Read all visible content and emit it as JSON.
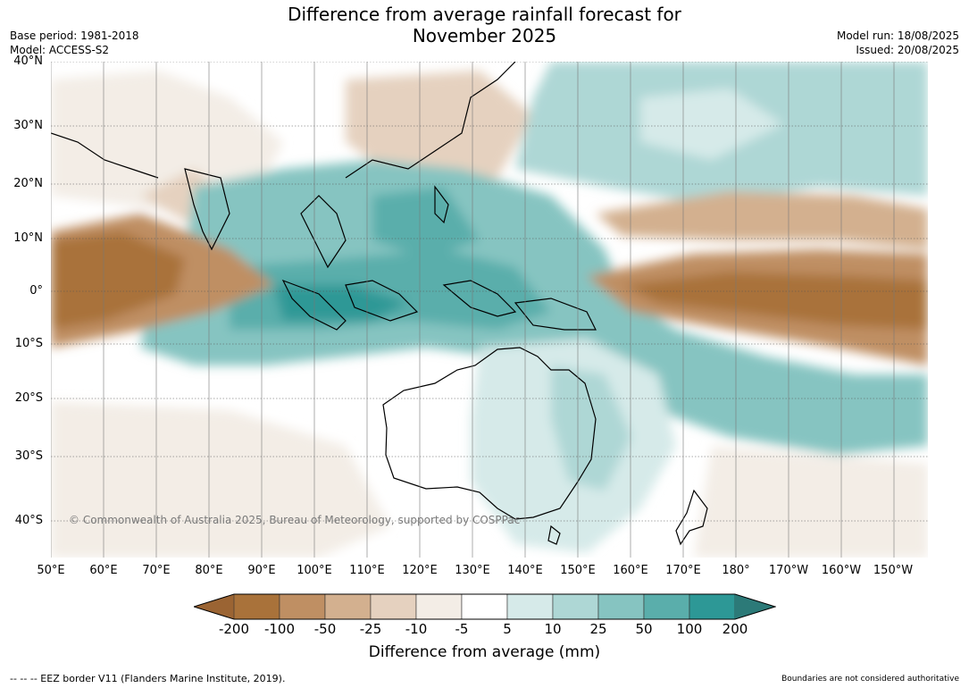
{
  "title_line1": "Difference from average rainfall forecast for",
  "title_line2": "November 2025",
  "base_period": "Base period: 1981-2018",
  "model": "Model: ACCESS-S2",
  "model_run": "Model run: 18/08/2025",
  "issued": "Issued: 20/08/2025",
  "copyright": "© Commonwealth of Australia 2025, Bureau of Meteorology, supported by COSPPac",
  "lat_labels": [
    "40°N",
    "30°N",
    "20°N",
    "10°N",
    "0°",
    "10°S",
    "20°S",
    "30°S",
    "40°S"
  ],
  "lon_labels": [
    "50°E",
    "60°E",
    "70°E",
    "80°E",
    "90°E",
    "100°E",
    "110°E",
    "120°E",
    "130°E",
    "140°E",
    "150°E",
    "160°E",
    "170°E",
    "180°",
    "170°W",
    "160°W",
    "150°W"
  ],
  "colorbar": {
    "ticks": [
      "-200",
      "-100",
      "-50",
      "-25",
      "-10",
      "-5",
      "5",
      "10",
      "25",
      "50",
      "100",
      "200"
    ],
    "label": "Difference from average (mm)",
    "colors": {
      "below_min": "#9b6433",
      "bins": [
        "#a9723a",
        "#bf8f63",
        "#d3b08f",
        "#e5d1bf",
        "#f3ede6",
        "#ffffff",
        "#d6eae9",
        "#aed7d5",
        "#86c4c1",
        "#5aaeab",
        "#2d9896"
      ],
      "above_max": "#2c7a78"
    }
  },
  "eez_note": "-- -- -- EEZ border V11 (Flanders Marine Institute, 2019).",
  "disclaimer": "Boundaries are not considered authoritative"
}
